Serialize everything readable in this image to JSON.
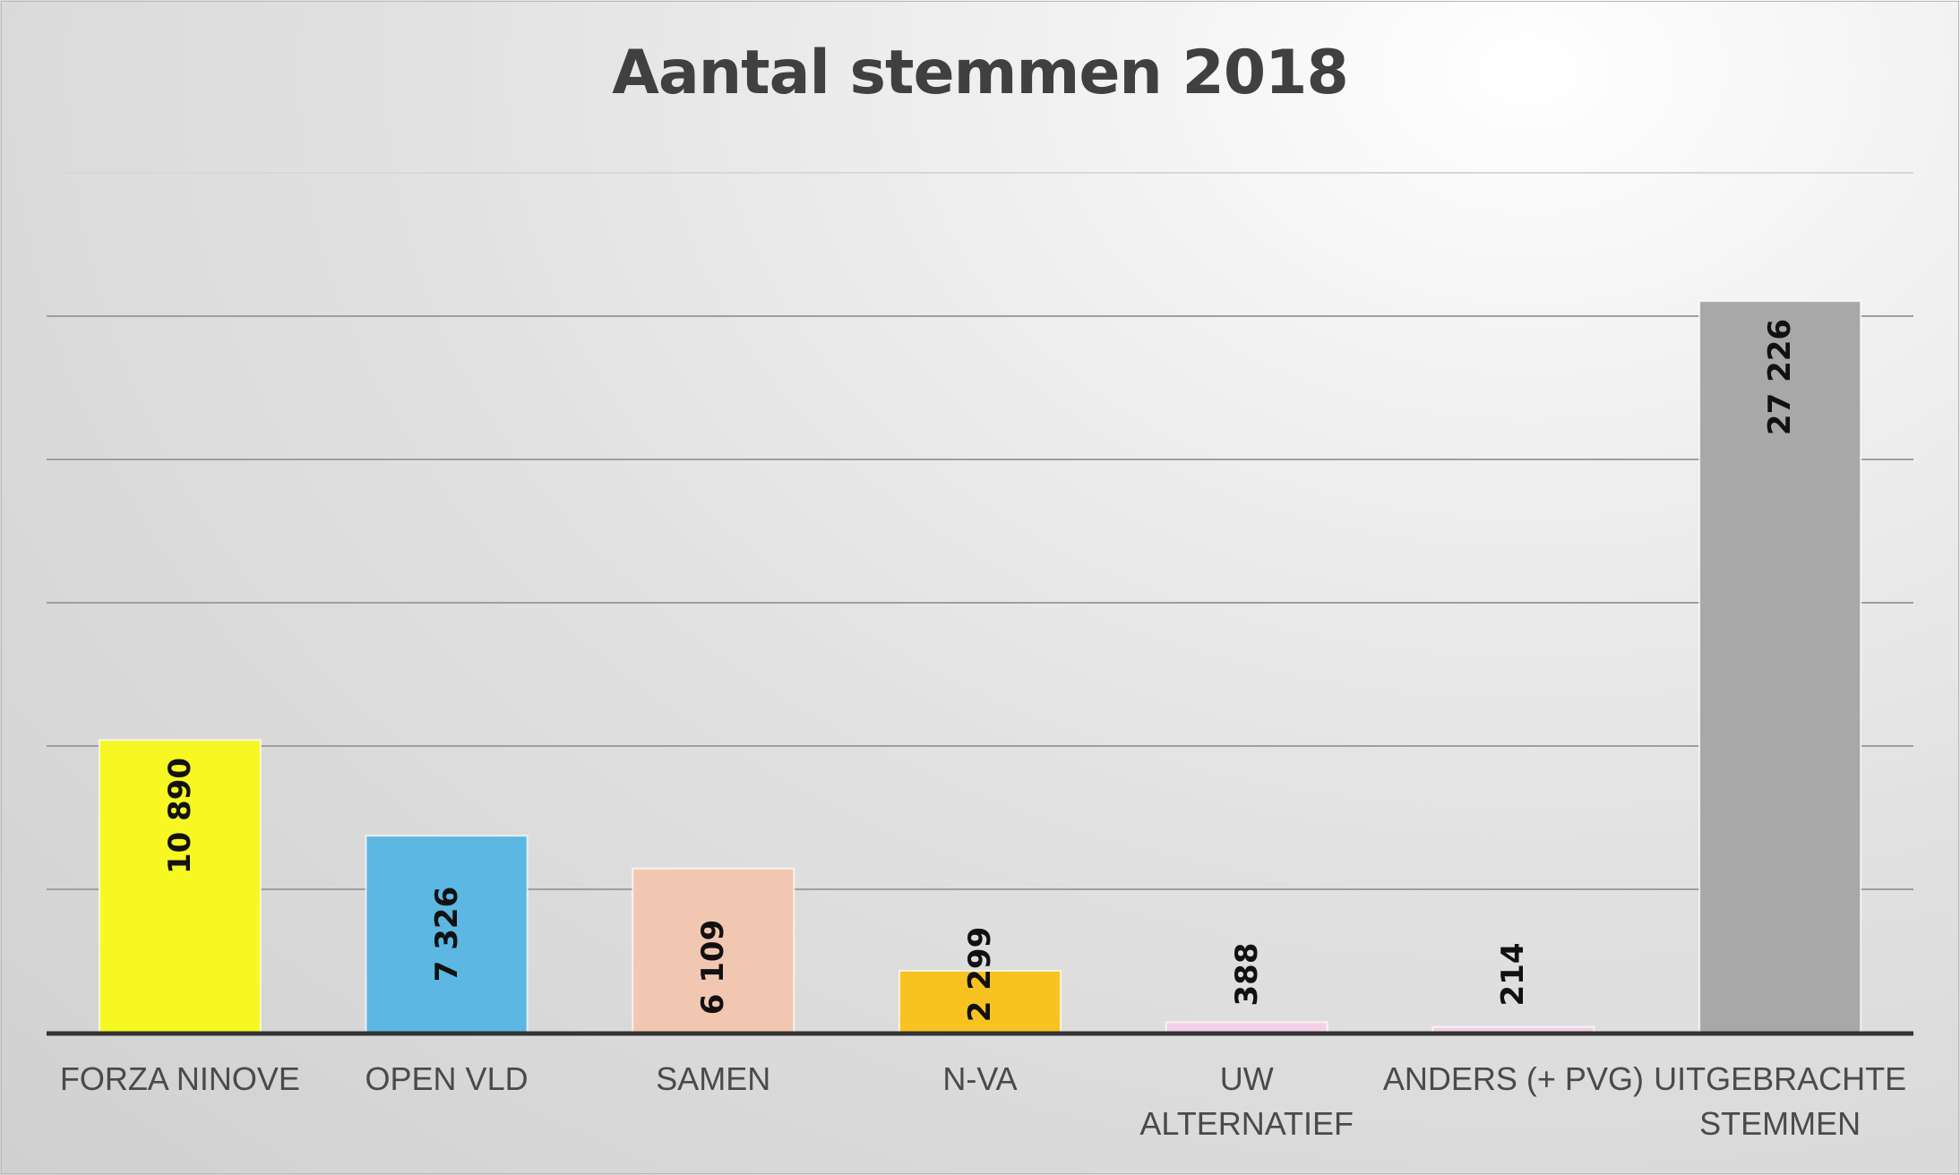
{
  "chart_data": {
    "type": "bar",
    "title": "Aantal stemmen 2018",
    "xlabel": "",
    "ylabel": "",
    "ylim": [
      0,
      32000
    ],
    "grid": true,
    "categories": [
      "FORZA NINOVE",
      "OPEN VLD",
      "SAMEN",
      "N-VA",
      "UW ALTERNATIEF",
      "ANDERS (+ PVG)",
      "UITGEBRACHTE STEMMEN"
    ],
    "values": [
      10890,
      7326,
      6109,
      2299,
      388,
      214,
      27226
    ],
    "data_labels": [
      "10 890",
      "7 326",
      "6 109",
      "2 299",
      "388",
      "214",
      "27 226"
    ],
    "colors": [
      "#f7f724",
      "#5cb7e2",
      "#f2c7b1",
      "#f8c320",
      "#f5cfe8",
      "#f1d0e6",
      "#a8a8a8"
    ]
  }
}
